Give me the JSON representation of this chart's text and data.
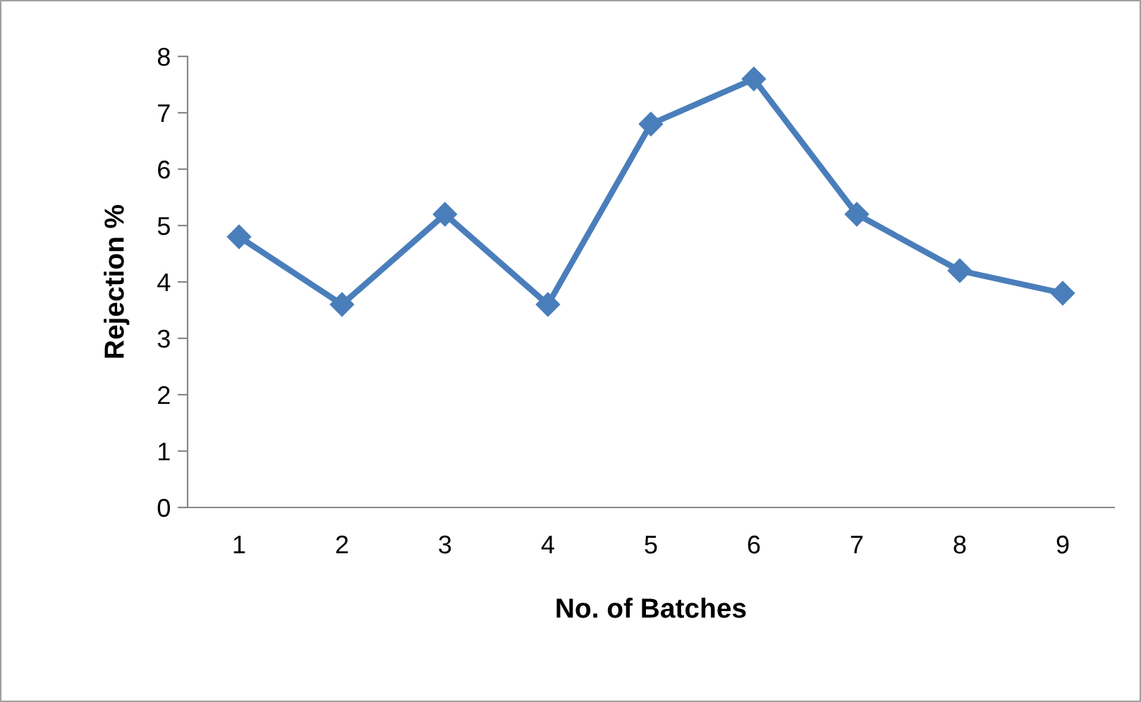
{
  "chart_data": {
    "type": "line",
    "xlabel": "No. of Batches",
    "ylabel": "Rejection %",
    "categories": [
      "1",
      "2",
      "3",
      "4",
      "5",
      "6",
      "7",
      "8",
      "9"
    ],
    "series": [
      {
        "color": "#4a7ebb",
        "values": [
          4.8,
          3.6,
          5.2,
          3.6,
          6.8,
          7.6,
          5.2,
          4.2,
          3.8
        ]
      }
    ],
    "ylim": [
      0,
      8
    ],
    "yticks": [
      0,
      1,
      2,
      3,
      4,
      5,
      6,
      7,
      8
    ],
    "marker": "diamond",
    "line_style": "solid",
    "grid": false,
    "legend": false
  }
}
